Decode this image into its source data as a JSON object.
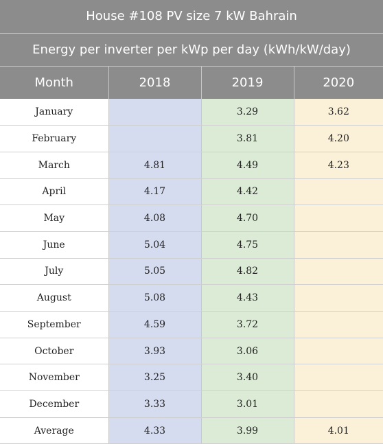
{
  "table": {
    "title": "House #108 PV size 7 kW Bahrain",
    "subtitle": "Energy per inverter per kWp per day (kWh/kW/day)",
    "headers": [
      "Month",
      "2018",
      "2019",
      "2020"
    ],
    "rows": [
      {
        "month": "January",
        "y2018": "",
        "y2019": "3.29",
        "y2020": "3.62"
      },
      {
        "month": "February",
        "y2018": "",
        "y2019": "3.81",
        "y2020": "4.20"
      },
      {
        "month": "March",
        "y2018": "4.81",
        "y2019": "4.49",
        "y2020": "4.23"
      },
      {
        "month": "April",
        "y2018": "4.17",
        "y2019": "4.42",
        "y2020": ""
      },
      {
        "month": "May",
        "y2018": "4.08",
        "y2019": "4.70",
        "y2020": ""
      },
      {
        "month": "June",
        "y2018": "5.04",
        "y2019": "4.75",
        "y2020": ""
      },
      {
        "month": "July",
        "y2018": "5.05",
        "y2019": "4.82",
        "y2020": ""
      },
      {
        "month": "August",
        "y2018": "5.08",
        "y2019": "4.43",
        "y2020": ""
      },
      {
        "month": "September",
        "y2018": "4.59",
        "y2019": "3.72",
        "y2020": ""
      },
      {
        "month": "October",
        "y2018": "3.93",
        "y2019": "3.06",
        "y2020": ""
      },
      {
        "month": "November",
        "y2018": "3.25",
        "y2019": "3.40",
        "y2020": ""
      },
      {
        "month": "December",
        "y2018": "3.33",
        "y2019": "3.01",
        "y2020": ""
      },
      {
        "month": "Average",
        "y2018": "4.33",
        "y2019": "3.99",
        "y2020": "4.01"
      }
    ]
  },
  "colors": {
    "header_bg": "#8c8c8c",
    "col_2018_bg": "#d6dcef",
    "col_2019_bg": "#dcebd6",
    "col_2020_bg": "#fbf1d8"
  }
}
